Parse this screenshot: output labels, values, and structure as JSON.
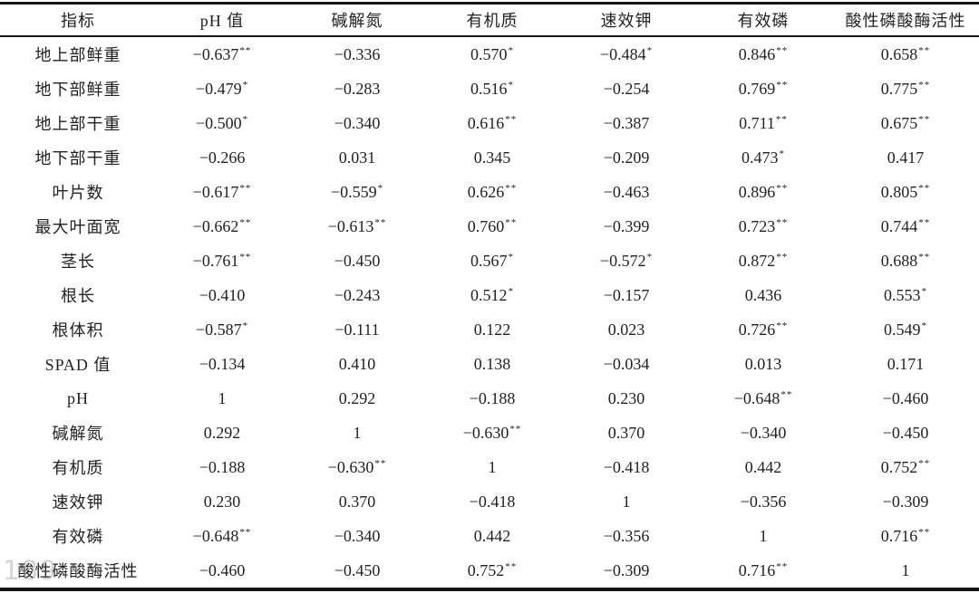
{
  "table": {
    "columns": [
      "指标",
      "pH 值",
      "碱解氮",
      "有机质",
      "速效钾",
      "有效磷",
      "酸性磷酸酶活性"
    ],
    "rows": [
      {
        "label": "地上部鲜重",
        "cells": [
          "−0.637**",
          "−0.336",
          "0.570*",
          "−0.484*",
          "0.846**",
          "0.658**"
        ]
      },
      {
        "label": "地下部鲜重",
        "cells": [
          "−0.479*",
          "−0.283",
          "0.516*",
          "−0.254",
          "0.769**",
          "0.775**"
        ]
      },
      {
        "label": "地上部干重",
        "cells": [
          "−0.500*",
          "−0.340",
          "0.616**",
          "−0.387",
          "0.711**",
          "0.675**"
        ]
      },
      {
        "label": "地下部干重",
        "cells": [
          "−0.266",
          "0.031",
          "0.345",
          "−0.209",
          "0.473*",
          "0.417"
        ]
      },
      {
        "label": "叶片数",
        "cells": [
          "−0.617**",
          "−0.559*",
          "0.626**",
          "−0.463",
          "0.896**",
          "0.805**"
        ]
      },
      {
        "label": "最大叶面宽",
        "cells": [
          "−0.662**",
          "−0.613**",
          "0.760**",
          "−0.399",
          "0.723**",
          "0.744**"
        ]
      },
      {
        "label": "茎长",
        "cells": [
          "−0.761**",
          "−0.450",
          "0.567*",
          "−0.572*",
          "0.872**",
          "0.688**"
        ]
      },
      {
        "label": "根长",
        "cells": [
          "−0.410",
          "−0.243",
          "0.512*",
          "−0.157",
          "0.436",
          "0.553*"
        ]
      },
      {
        "label": "根体积",
        "cells": [
          "−0.587*",
          "−0.111",
          "0.122",
          "0.023",
          "0.726**",
          "0.549*"
        ]
      },
      {
        "label": "SPAD 值",
        "cells": [
          "−0.134",
          "0.410",
          "0.138",
          "−0.034",
          "0.013",
          "0.171"
        ]
      },
      {
        "label": "pH",
        "cells": [
          "1",
          "0.292",
          "−0.188",
          "0.230",
          "−0.648**",
          "−0.460"
        ]
      },
      {
        "label": "碱解氮",
        "cells": [
          "0.292",
          "1",
          "−0.630**",
          "0.370",
          "−0.340",
          "−0.450"
        ]
      },
      {
        "label": "有机质",
        "cells": [
          "−0.188",
          "−0.630**",
          "1",
          "−0.418",
          "0.442",
          "0.752**"
        ]
      },
      {
        "label": "速效钾",
        "cells": [
          "0.230",
          "0.370",
          "−0.418",
          "1",
          "−0.356",
          "−0.309"
        ]
      },
      {
        "label": "有效磷",
        "cells": [
          "−0.648**",
          "−0.340",
          "0.442",
          "−0.356",
          "1",
          "0.716**"
        ]
      },
      {
        "label": "酸性磷酸酶活性",
        "cells": [
          "−0.460",
          "−0.450",
          "0.752**",
          "−0.309",
          "0.716**",
          "1"
        ]
      }
    ]
  },
  "watermark": {
    "text": "189"
  },
  "colors": {
    "border": "#161616",
    "text": "#222222",
    "background": "#ffffff"
  }
}
